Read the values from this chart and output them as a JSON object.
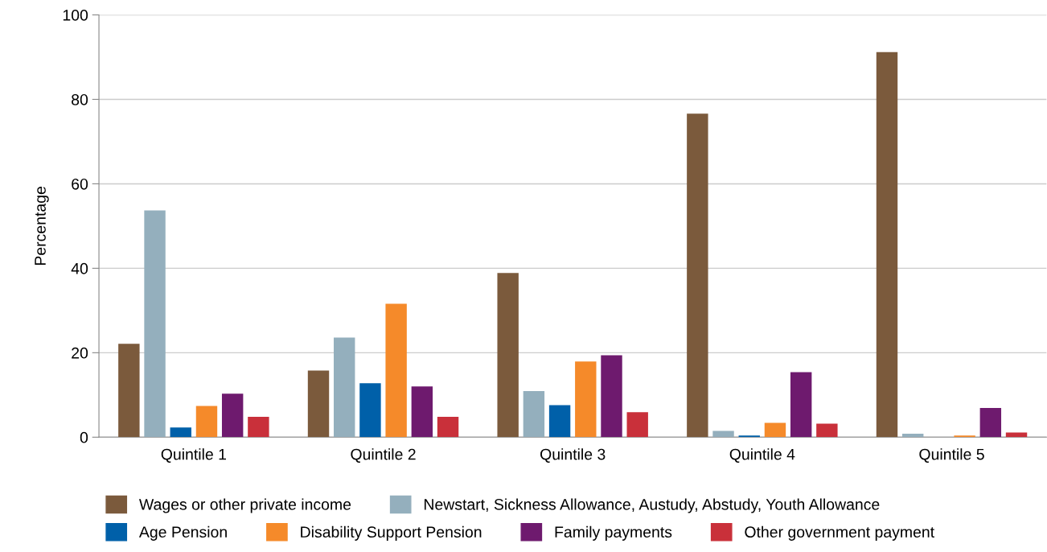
{
  "chart_data": {
    "type": "bar",
    "ylabel": "Percentage",
    "categories": [
      "Quintile 1",
      "Quintile 2",
      "Quintile 3",
      "Quintile 4",
      "Quintile 5"
    ],
    "series": [
      {
        "name": "Wages or other private income",
        "color": "#7b5a3c",
        "values": [
          22.1,
          15.8,
          38.9,
          76.6,
          91.2
        ]
      },
      {
        "name": "Newstart, Sickness Allowance, Austudy, Abstudy, Youth Allowance",
        "color": "#94afbd",
        "values": [
          53.7,
          23.6,
          10.9,
          1.5,
          0.8
        ]
      },
      {
        "name": "Age Pension",
        "color": "#0060a9",
        "values": [
          2.3,
          12.8,
          7.6,
          0.4,
          0
        ]
      },
      {
        "name": "Disability Support Pension",
        "color": "#f58a2a",
        "values": [
          7.4,
          31.6,
          17.9,
          3.4,
          0.4
        ]
      },
      {
        "name": "Family payments",
        "color": "#6e1a6e",
        "values": [
          10.3,
          12.0,
          19.4,
          15.4,
          6.9
        ]
      },
      {
        "name": "Other government payment",
        "color": "#c9303a",
        "values": [
          4.8,
          4.8,
          5.9,
          3.2,
          1.1
        ]
      }
    ],
    "ylim": [
      0,
      100
    ],
    "yticks": [
      0,
      20,
      40,
      60,
      80,
      100
    ],
    "grid": "y",
    "legend": "bottom"
  }
}
